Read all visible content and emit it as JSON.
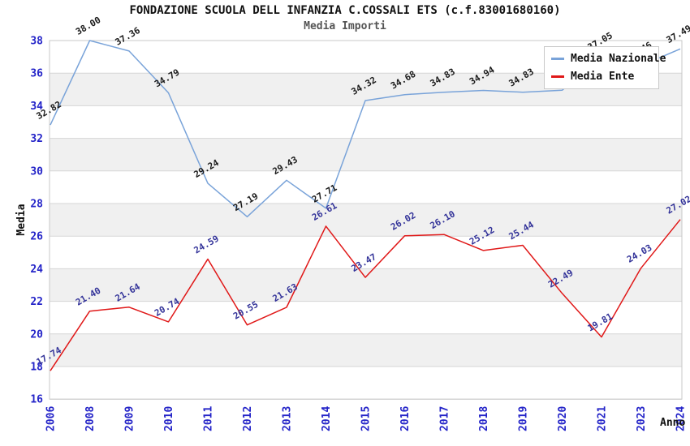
{
  "title": "FONDAZIONE SCUOLA DELL INFANZIA C.COSSALI ETS (c.f.83001680160)",
  "subtitle": "Media Importi",
  "chart_data": {
    "type": "line",
    "title": "FONDAZIONE SCUOLA DELL INFANZIA C.COSSALI ETS (c.f.83001680160)",
    "subtitle": "Media Importi",
    "xlabel": "Anno",
    "ylabel": "Media",
    "ylim": [
      16,
      38
    ],
    "ytick_step": 2,
    "yticks": [
      16,
      18,
      20,
      22,
      24,
      26,
      28,
      30,
      32,
      34,
      36,
      38
    ],
    "grid": "horizontal-bands",
    "band_pairs": [
      [
        36,
        34
      ],
      [
        32,
        30
      ],
      [
        28,
        26
      ],
      [
        24,
        22
      ],
      [
        20,
        18
      ]
    ],
    "legend_position": "top-right",
    "categories": [
      "2006",
      "2008",
      "2009",
      "2010",
      "2011",
      "2012",
      "2013",
      "2014",
      "2015",
      "2016",
      "2017",
      "2018",
      "2019",
      "2020",
      "2021",
      "2023",
      "2024"
    ],
    "series": [
      {
        "name": "Media Nazionale",
        "color": "#79a3d9",
        "label_color": "#1a1a1a",
        "values": [
          32.82,
          38.0,
          37.36,
          34.79,
          29.24,
          27.19,
          29.43,
          27.71,
          34.32,
          34.68,
          34.83,
          34.94,
          34.83,
          34.95,
          37.05,
          36.46,
          37.49
        ],
        "labels": [
          "32.82",
          "38.00",
          "37.36",
          "34.79",
          "29.24",
          "27.19",
          "29.43",
          "27.71",
          "34.32",
          "34.68",
          "34.83",
          "34.94",
          "34.83",
          "34.95",
          "37.05",
          "36.46",
          "37.49"
        ]
      },
      {
        "name": "Media Ente",
        "color": "#e01818",
        "label_color": "#333399",
        "values": [
          17.74,
          21.4,
          21.64,
          20.74,
          24.59,
          20.55,
          21.63,
          26.61,
          23.47,
          26.02,
          26.1,
          25.12,
          25.44,
          22.49,
          19.81,
          24.03,
          27.02
        ],
        "labels": [
          "17.74",
          "21.40",
          "21.64",
          "20.74",
          "24.59",
          "20.55",
          "21.63",
          "26.61",
          "23.47",
          "26.02",
          "26.10",
          "25.12",
          "25.44",
          "22.49",
          "19.81",
          "24.03",
          "27.02"
        ]
      }
    ],
    "colors": {
      "tick_label": "#2424c8",
      "axis_title": "#111111",
      "band_fill": "#f0f0f0",
      "gridline": "#d6d6d6",
      "plot_border": "#c9c9c9",
      "background": "#ffffff"
    }
  }
}
